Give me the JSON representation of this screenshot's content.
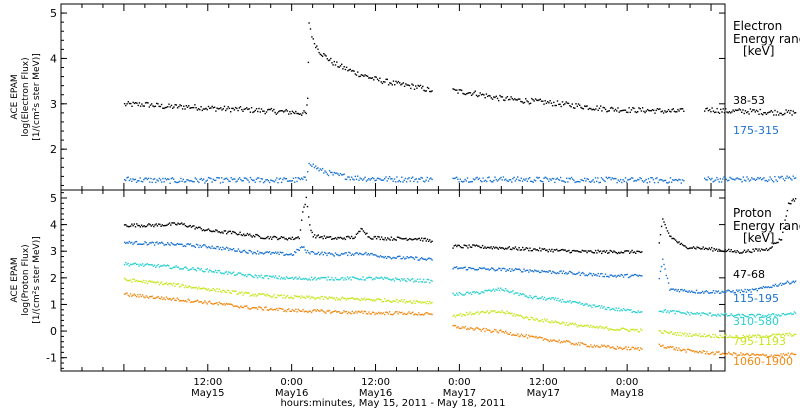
{
  "chart_data": [
    {
      "type": "scatter",
      "panel": "electron",
      "ylabel_lines": [
        "ACE EPAM",
        "log(Electron Flux)",
        "[1/(cm²s ster MeV)]"
      ],
      "ylim": [
        1.1,
        5.2
      ],
      "yticks": [
        2,
        3,
        4,
        5
      ],
      "legend_title": [
        "Electron",
        "Energy range",
        "[keV]"
      ],
      "series": [
        {
          "name": "38-53",
          "color": "#000000",
          "segments": [
            {
              "points": [
                [
                  0,
                  3.0
                ],
                [
                  3,
                  3.0
                ],
                [
                  6,
                  2.95
                ],
                [
                  9,
                  2.95
                ],
                [
                  12,
                  2.92
                ],
                [
                  15,
                  2.9
                ],
                [
                  18,
                  2.88
                ],
                [
                  21,
                  2.85
                ],
                [
                  24,
                  2.83
                ],
                [
                  26,
                  2.8
                ],
                [
                  26.2,
                  3.1
                ],
                [
                  26.4,
                  4.8
                ],
                [
                  27,
                  4.4
                ],
                [
                  28,
                  4.15
                ],
                [
                  30,
                  3.9
                ],
                [
                  33,
                  3.7
                ],
                [
                  36,
                  3.55
                ],
                [
                  39,
                  3.45
                ],
                [
                  42,
                  3.38
                ],
                [
                  44,
                  3.3
                ]
              ]
            },
            {
              "points": [
                [
                  47,
                  3.3
                ],
                [
                  50,
                  3.25
                ],
                [
                  53,
                  3.15
                ],
                [
                  56,
                  3.1
                ],
                [
                  60,
                  3.05
                ],
                [
                  63,
                  3.0
                ],
                [
                  66,
                  2.95
                ],
                [
                  69,
                  2.9
                ],
                [
                  72,
                  2.88
                ],
                [
                  75,
                  2.87
                ],
                [
                  78,
                  2.85
                ],
                [
                  80,
                  2.85
                ]
              ]
            },
            {
              "points": [
                [
                  83,
                  2.9
                ],
                [
                  86,
                  2.85
                ],
                [
                  89,
                  2.85
                ],
                [
                  92,
                  2.83
                ],
                [
                  95,
                  2.82
                ],
                [
                  96,
                  2.82
                ]
              ]
            }
          ]
        },
        {
          "name": "175-315",
          "color": "#1a73d0",
          "segments": [
            {
              "points": [
                [
                  0,
                  1.35
                ],
                [
                  6,
                  1.32
                ],
                [
                  12,
                  1.33
                ],
                [
                  18,
                  1.33
                ],
                [
                  24,
                  1.33
                ],
                [
                  26,
                  1.35
                ],
                [
                  26.4,
                  1.75
                ],
                [
                  27,
                  1.65
                ],
                [
                  28,
                  1.55
                ],
                [
                  30,
                  1.45
                ],
                [
                  33,
                  1.38
                ],
                [
                  36,
                  1.36
                ],
                [
                  40,
                  1.35
                ],
                [
                  44,
                  1.35
                ]
              ]
            },
            {
              "points": [
                [
                  47,
                  1.35
                ],
                [
                  53,
                  1.35
                ],
                [
                  60,
                  1.34
                ],
                [
                  66,
                  1.34
                ],
                [
                  72,
                  1.33
                ],
                [
                  76,
                  1.33
                ],
                [
                  80,
                  1.32
                ]
              ]
            },
            {
              "points": [
                [
                  83,
                  1.35
                ],
                [
                  88,
                  1.35
                ],
                [
                  92,
                  1.35
                ],
                [
                  96,
                  1.38
                ]
              ]
            }
          ]
        }
      ]
    },
    {
      "type": "scatter",
      "panel": "proton",
      "ylabel_lines": [
        "ACE EPAM",
        "log(Proton Flux)",
        "[1/(cm²s ster MeV)]"
      ],
      "ylim": [
        -1.5,
        5.3
      ],
      "yticks": [
        -1,
        0,
        1,
        2,
        3,
        4,
        5
      ],
      "legend_title": [
        "Proton",
        "Energy range",
        "[keV]"
      ],
      "x_tick_labels": [
        {
          "x": 12,
          "top": "12:00",
          "bottom": "May15"
        },
        {
          "x": 24,
          "top": "0:00",
          "bottom": "May16"
        },
        {
          "x": 36,
          "top": "12:00",
          "bottom": "May16"
        },
        {
          "x": 48,
          "top": "0:00",
          "bottom": "May17"
        },
        {
          "x": 60,
          "top": "12:00",
          "bottom": "May17"
        },
        {
          "x": 72,
          "top": "0:00",
          "bottom": "May18"
        }
      ],
      "xlabel": "hours:minutes, May 15, 2011 - May 18, 2011",
      "xlim": [
        -9,
        86
      ],
      "series": [
        {
          "name": "47-68",
          "color": "#000000",
          "segments": [
            {
              "points": [
                [
                  0,
                  4.0
                ],
                [
                  4,
                  4.0
                ],
                [
                  8,
                  4.05
                ],
                [
                  12,
                  3.8
                ],
                [
                  16,
                  3.7
                ],
                [
                  20,
                  3.55
                ],
                [
                  24,
                  3.5
                ],
                [
                  25,
                  3.55
                ],
                [
                  25.5,
                  4.5
                ],
                [
                  26,
                  5.0
                ],
                [
                  26.5,
                  4.0
                ],
                [
                  27,
                  3.6
                ],
                [
                  30,
                  3.5
                ],
                [
                  33,
                  3.55
                ],
                [
                  34,
                  3.9
                ],
                [
                  35,
                  3.55
                ],
                [
                  38,
                  3.5
                ],
                [
                  42,
                  3.5
                ],
                [
                  44,
                  3.4
                ]
              ]
            },
            {
              "points": [
                [
                  47,
                  3.2
                ],
                [
                  50,
                  3.2
                ],
                [
                  54,
                  3.15
                ],
                [
                  58,
                  3.1
                ],
                [
                  62,
                  3.05
                ],
                [
                  66,
                  3.0
                ],
                [
                  70,
                  3.0
                ],
                [
                  74,
                  3.0
                ]
              ]
            },
            {
              "points": [
                [
                  76.5,
                  3.3
                ],
                [
                  77,
                  4.2
                ],
                [
                  78,
                  3.6
                ],
                [
                  80,
                  3.2
                ],
                [
                  84,
                  3.1
                ],
                [
                  88,
                  3.0
                ],
                [
                  92,
                  3.1
                ],
                [
                  94,
                  3.5
                ],
                [
                  95,
                  4.8
                ],
                [
                  96,
                  5.0
                ]
              ]
            }
          ]
        },
        {
          "name": "115-195",
          "color": "#1a73d0",
          "segments": [
            {
              "points": [
                [
                  0,
                  3.35
                ],
                [
                  6,
                  3.3
                ],
                [
                  12,
                  3.2
                ],
                [
                  18,
                  3.0
                ],
                [
                  24,
                  2.9
                ],
                [
                  25.5,
                  3.2
                ],
                [
                  26,
                  3.0
                ],
                [
                  30,
                  2.9
                ],
                [
                  34,
                  2.95
                ],
                [
                  38,
                  2.8
                ],
                [
                  42,
                  2.75
                ],
                [
                  44,
                  2.7
                ]
              ]
            },
            {
              "points": [
                [
                  47,
                  2.4
                ],
                [
                  52,
                  2.35
                ],
                [
                  58,
                  2.3
                ],
                [
                  64,
                  2.2
                ],
                [
                  70,
                  2.1
                ],
                [
                  74,
                  2.1
                ]
              ]
            },
            {
              "points": [
                [
                  76.5,
                  2.0
                ],
                [
                  77,
                  2.7
                ],
                [
                  78,
                  1.6
                ],
                [
                  82,
                  1.5
                ],
                [
                  86,
                  1.5
                ],
                [
                  90,
                  1.55
                ],
                [
                  94,
                  1.8
                ],
                [
                  96,
                  1.9
                ]
              ]
            }
          ]
        },
        {
          "name": "310-580",
          "color": "#2ad0d0",
          "segments": [
            {
              "points": [
                [
                  0,
                  2.55
                ],
                [
                  6,
                  2.45
                ],
                [
                  12,
                  2.3
                ],
                [
                  18,
                  2.1
                ],
                [
                  24,
                  2.0
                ],
                [
                  30,
                  2.0
                ],
                [
                  36,
                  2.0
                ],
                [
                  40,
                  1.95
                ],
                [
                  44,
                  1.9
                ]
              ]
            },
            {
              "points": [
                [
                  47,
                  1.4
                ],
                [
                  50,
                  1.45
                ],
                [
                  54,
                  1.6
                ],
                [
                  58,
                  1.3
                ],
                [
                  62,
                  1.2
                ],
                [
                  66,
                  1.0
                ],
                [
                  70,
                  0.85
                ],
                [
                  74,
                  0.75
                ]
              ]
            },
            {
              "points": [
                [
                  76.5,
                  0.8
                ],
                [
                  80,
                  0.7
                ],
                [
                  84,
                  0.65
                ],
                [
                  88,
                  0.6
                ],
                [
                  92,
                  0.6
                ],
                [
                  96,
                  0.7
                ]
              ]
            }
          ]
        },
        {
          "name": "795-1193",
          "color": "#c8e61e",
          "segments": [
            {
              "points": [
                [
                  0,
                  1.95
                ],
                [
                  6,
                  1.8
                ],
                [
                  12,
                  1.6
                ],
                [
                  18,
                  1.4
                ],
                [
                  24,
                  1.3
                ],
                [
                  30,
                  1.25
                ],
                [
                  36,
                  1.2
                ],
                [
                  40,
                  1.15
                ],
                [
                  44,
                  1.1
                ]
              ]
            },
            {
              "points": [
                [
                  47,
                  0.6
                ],
                [
                  50,
                  0.7
                ],
                [
                  54,
                  0.75
                ],
                [
                  58,
                  0.5
                ],
                [
                  62,
                  0.35
                ],
                [
                  66,
                  0.2
                ],
                [
                  70,
                  0.1
                ],
                [
                  74,
                  0.05
                ]
              ]
            },
            {
              "points": [
                [
                  76.5,
                  0.0
                ],
                [
                  80,
                  -0.1
                ],
                [
                  84,
                  -0.15
                ],
                [
                  88,
                  -0.2
                ],
                [
                  92,
                  -0.15
                ],
                [
                  96,
                  -0.1
                ]
              ]
            }
          ]
        },
        {
          "name": "1060-1900",
          "color": "#f08a14",
          "segments": [
            {
              "points": [
                [
                  0,
                  1.4
                ],
                [
                  6,
                  1.25
                ],
                [
                  12,
                  1.1
                ],
                [
                  18,
                  0.9
                ],
                [
                  24,
                  0.8
                ],
                [
                  30,
                  0.75
                ],
                [
                  36,
                  0.7
                ],
                [
                  40,
                  0.7
                ],
                [
                  44,
                  0.65
                ]
              ]
            },
            {
              "points": [
                [
                  47,
                  0.2
                ],
                [
                  50,
                  0.1
                ],
                [
                  54,
                  0.0
                ],
                [
                  58,
                  -0.2
                ],
                [
                  62,
                  -0.35
                ],
                [
                  66,
                  -0.5
                ],
                [
                  70,
                  -0.6
                ],
                [
                  74,
                  -0.65
                ]
              ]
            },
            {
              "points": [
                [
                  76.5,
                  -0.5
                ],
                [
                  80,
                  -0.7
                ],
                [
                  84,
                  -0.8
                ],
                [
                  88,
                  -0.85
                ],
                [
                  92,
                  -0.9
                ],
                [
                  96,
                  -0.85
                ]
              ]
            }
          ]
        }
      ]
    }
  ]
}
